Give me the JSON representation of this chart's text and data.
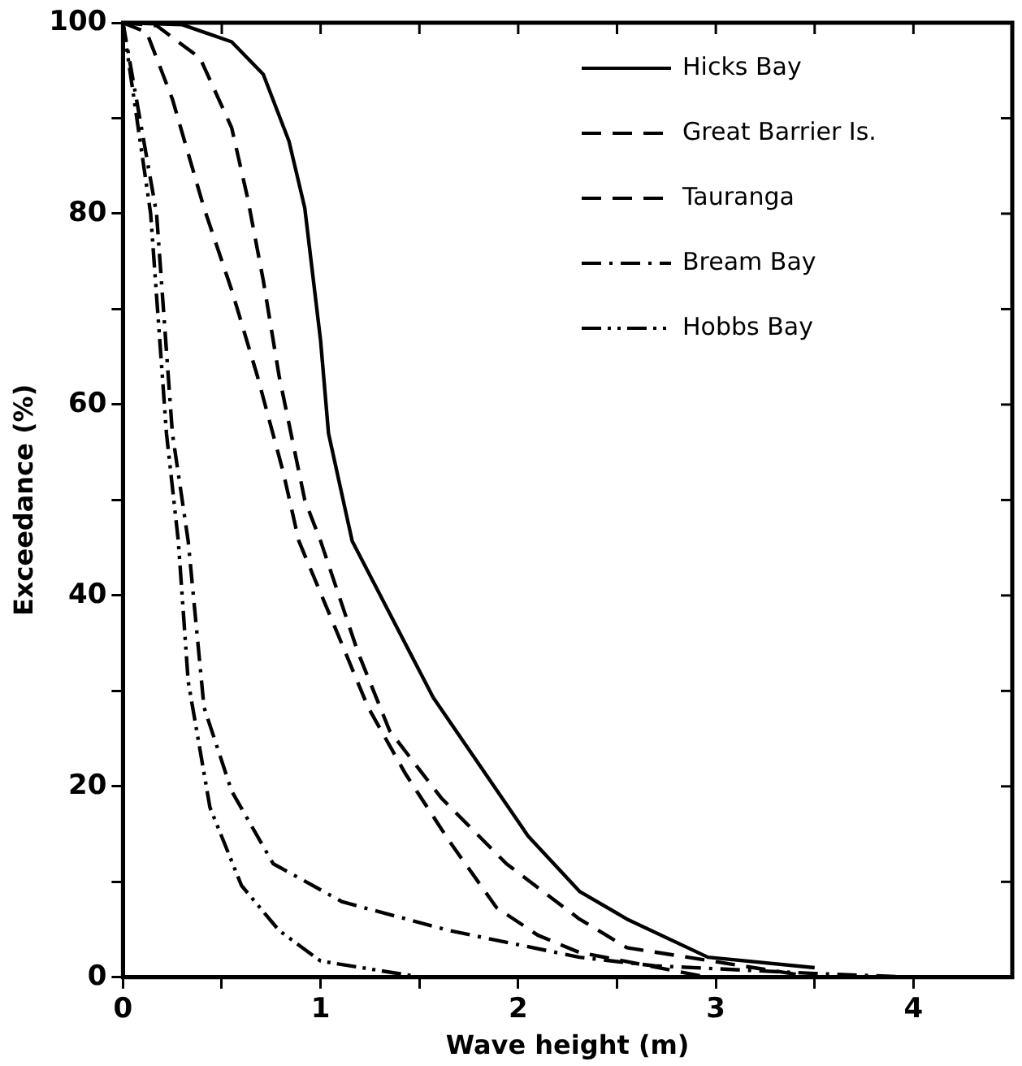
{
  "chart_data": {
    "type": "line",
    "xlabel": "Wave height (m)",
    "ylabel": "Exceedance (%)",
    "xlim": [
      0,
      4.5
    ],
    "ylim": [
      0,
      100
    ],
    "xticks": [
      0,
      {
        "value": 0.5,
        "label": null
      },
      1,
      {
        "value": 1.5,
        "label": null
      },
      2,
      {
        "value": 2.5,
        "label": null
      },
      3,
      {
        "value": 3.5,
        "label": null
      },
      4
    ],
    "yticks": [
      0,
      {
        "value": 10,
        "label": null
      },
      20,
      {
        "value": 30,
        "label": null
      },
      40,
      {
        "value": 50,
        "label": null
      },
      60,
      {
        "value": 70,
        "label": null
      },
      80,
      {
        "value": 90,
        "label": null
      },
      100
    ],
    "grid": false,
    "legend": "top right",
    "marker": "none",
    "series": [
      {
        "name": "Hicks Bay",
        "color": "#000000",
        "line_style": "solid",
        "x": [
          0,
          0.3,
          0.55,
          0.71,
          0.84,
          0.92,
          1.0,
          1.04,
          1.13,
          1.16,
          1.57,
          2.05,
          2.31,
          2.55,
          2.96,
          3.5
        ],
        "values": [
          100,
          99.8,
          98,
          94.6,
          87.6,
          80.6,
          66.7,
          57,
          48.5,
          45.7,
          29.3,
          14.8,
          9,
          6.1,
          2.1,
          1
        ]
      },
      {
        "name": "Great Barrier Is.",
        "color": "#000000",
        "line_style": "dashed",
        "x": [
          0,
          0.17,
          0.39,
          0.55,
          0.63,
          0.71,
          0.79,
          0.92,
          1.0,
          1.19,
          1.35,
          1.61,
          1.94,
          2.31,
          2.55,
          3.5
        ],
        "values": [
          100,
          99.7,
          96.3,
          89,
          81.7,
          73,
          63,
          50,
          45.7,
          34,
          25.8,
          18.8,
          11.9,
          6.1,
          3.1,
          0
        ]
      },
      {
        "name": "Tauranga",
        "color": "#000000",
        "line_style": "dashed",
        "x": [
          0,
          0.12,
          0.25,
          0.41,
          0.55,
          0.68,
          0.81,
          0.89,
          1.08,
          1.24,
          1.43,
          1.65,
          1.89,
          2.1,
          2.31,
          2.96
        ],
        "values": [
          100,
          99,
          92,
          80.6,
          72,
          63,
          53,
          45.7,
          36.3,
          28.3,
          21.3,
          14.3,
          7.3,
          4.4,
          2.6,
          0
        ]
      },
      {
        "name": "Bream Bay",
        "color": "#000000",
        "line_style": "dashdot",
        "x": [
          0,
          0.17,
          0.25,
          0.33,
          0.41,
          0.55,
          0.76,
          1.11,
          1.65,
          2.31,
          2.69,
          3.5,
          4.0
        ],
        "values": [
          100,
          80,
          57,
          45.7,
          28.3,
          19.5,
          11.9,
          7.9,
          4.9,
          2.1,
          1.2,
          0.4,
          0
        ]
      },
      {
        "name": "Hobbs Bay",
        "color": "#000000",
        "line_style": "dashdotdot",
        "x": [
          0,
          0.14,
          0.22,
          0.28,
          0.33,
          0.44,
          0.6,
          0.79,
          1.0,
          1.51
        ],
        "values": [
          100,
          80,
          57,
          45.7,
          31,
          17.8,
          9.6,
          4.9,
          1.7,
          0
        ]
      }
    ]
  }
}
